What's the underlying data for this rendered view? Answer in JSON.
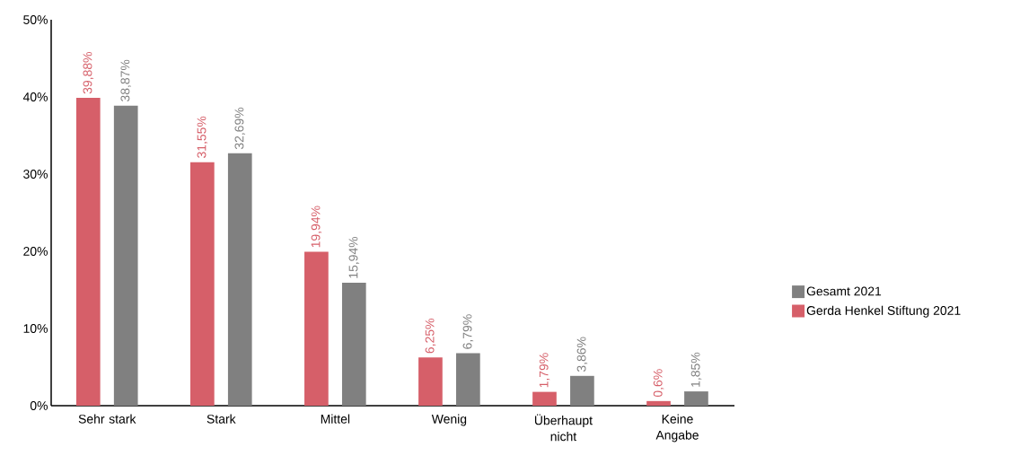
{
  "chart_data": {
    "type": "bar",
    "categories": [
      "Sehr stark",
      "Stark",
      "Mittel",
      "Wenig",
      "Überhaupt nicht",
      "Keine Angabe"
    ],
    "series": [
      {
        "name": "Gerda Henkel Stiftung 2021",
        "color": "#d65f69",
        "values": [
          39.88,
          31.55,
          19.94,
          6.25,
          1.79,
          0.6
        ],
        "value_labels": [
          "39,88%",
          "31,55%",
          "19,94%",
          "6,25%",
          "1,79%",
          "0,6%"
        ]
      },
      {
        "name": "Gesamt 2021",
        "color": "#808080",
        "values": [
          38.87,
          32.69,
          15.94,
          6.79,
          3.86,
          1.85
        ],
        "value_labels": [
          "38,87%",
          "32,69%",
          "15,94%",
          "6,79%",
          "3,86%",
          "1,85%"
        ]
      }
    ],
    "ylim": [
      0,
      50
    ],
    "yticks": [
      {
        "value": 0,
        "label": "0%"
      },
      {
        "value": 10,
        "label": "10%"
      },
      {
        "value": 20,
        "label": "20%"
      },
      {
        "value": 30,
        "label": "30%"
      },
      {
        "value": 40,
        "label": "40%"
      },
      {
        "value": 50,
        "label": "50%"
      }
    ],
    "grid": false,
    "legend": "right"
  }
}
